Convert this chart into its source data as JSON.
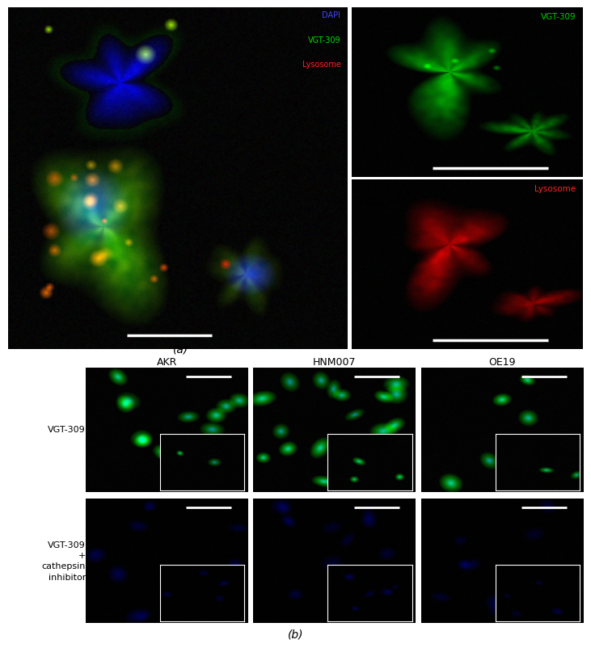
{
  "fig_width": 7.11,
  "fig_height": 7.89,
  "bg_color": "#ffffff",
  "legend_texts": [
    "DAPI",
    "VGT-309",
    "Lysosome"
  ],
  "legend_colors": [
    "#4444ff",
    "#00dd00",
    "#ff2222"
  ],
  "top_right_labels": [
    "VGT-309",
    "Lysosome"
  ],
  "top_right_label_colors": [
    "#00cc00",
    "#ff2222"
  ],
  "col_labels": [
    "AKR",
    "HNM007",
    "OE19"
  ],
  "row_label1": "VGT-309",
  "row_label2": "VGT-309\n+\ncathepsin\ninhibitor",
  "panel_label_a": "(a)",
  "panel_label_b": "(b)"
}
